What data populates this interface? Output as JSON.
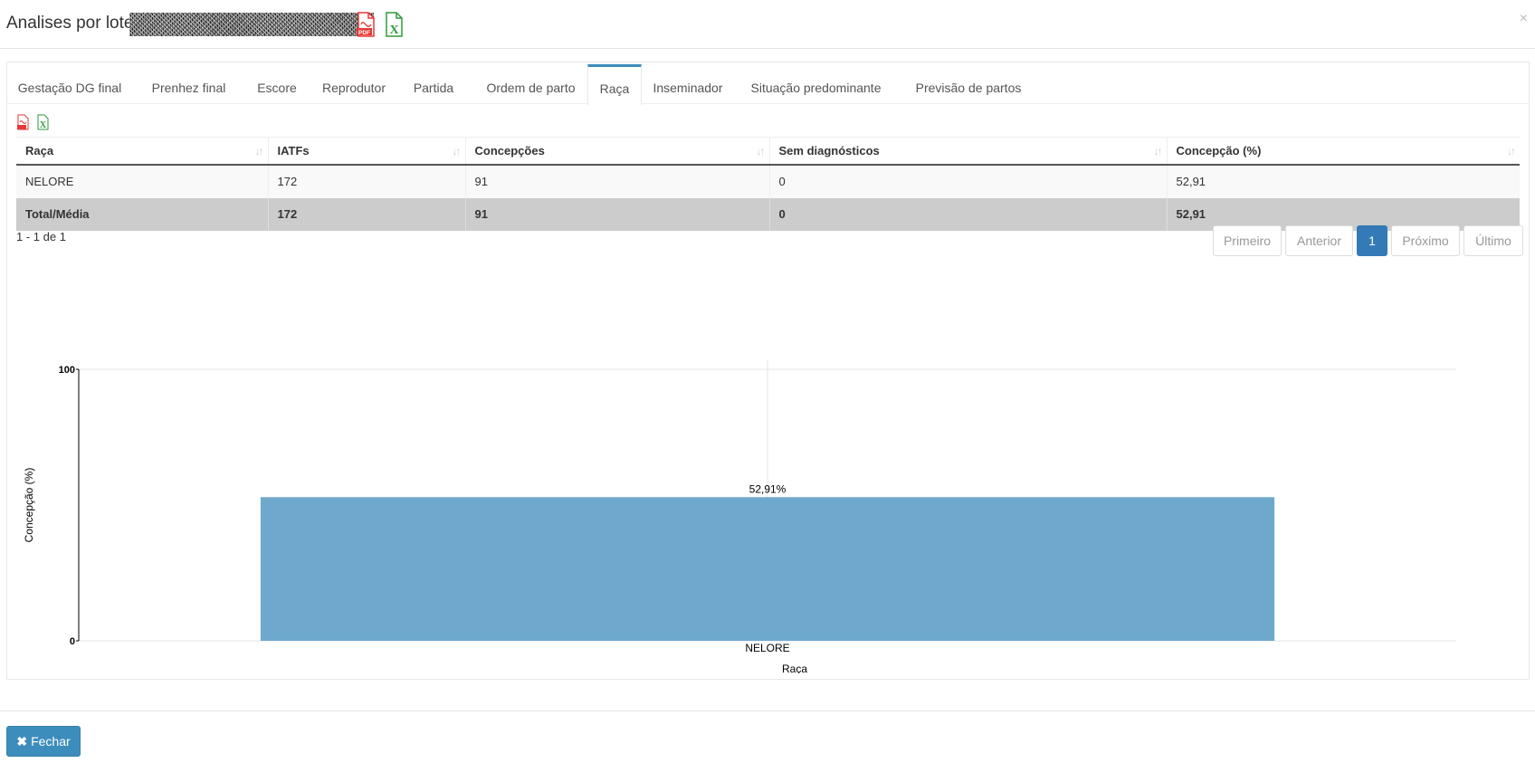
{
  "modal": {
    "title": "Analises por lotes",
    "close_symbol": "×",
    "export_pdf_icon": "pdf-file-icon",
    "export_excel_icon": "excel-file-icon"
  },
  "tabs": [
    {
      "label": "Gestação DG final"
    },
    {
      "label": "Prenhez final"
    },
    {
      "label": "Escore"
    },
    {
      "label": "Reprodutor"
    },
    {
      "label": "Partida"
    },
    {
      "label": "Ordem de parto"
    },
    {
      "label": "Raça",
      "active": true
    },
    {
      "label": "Inseminador"
    },
    {
      "label": "Situação predominante"
    },
    {
      "label": "Previsão de partos"
    }
  ],
  "table": {
    "headers": [
      "Raça",
      "IATFs",
      "Concepções",
      "Sem diagnósticos",
      "Concepção (%)"
    ],
    "rows": [
      [
        "NELORE",
        "172",
        "91",
        "0",
        "52,91"
      ]
    ],
    "total": [
      "Total/Média",
      "172",
      "91",
      "0",
      "52,91"
    ]
  },
  "pagination": {
    "info": "1 - 1 de 1",
    "first": "Primeiro",
    "prev": "Anterior",
    "current": "1",
    "next": "Próximo",
    "last": "Último"
  },
  "chart_data": {
    "type": "bar",
    "categories": [
      "NELORE"
    ],
    "values": [
      52.91
    ],
    "value_labels": [
      "52,91%"
    ],
    "xlabel": "Raça",
    "ylabel": "Concepção (%)",
    "ylim": [
      0,
      100
    ],
    "yticks": [
      "0",
      "100"
    ],
    "bar_color": "#6fa8cd",
    "grid": true
  },
  "footer": {
    "close_label": "Fechar",
    "close_symbol": "✖"
  }
}
